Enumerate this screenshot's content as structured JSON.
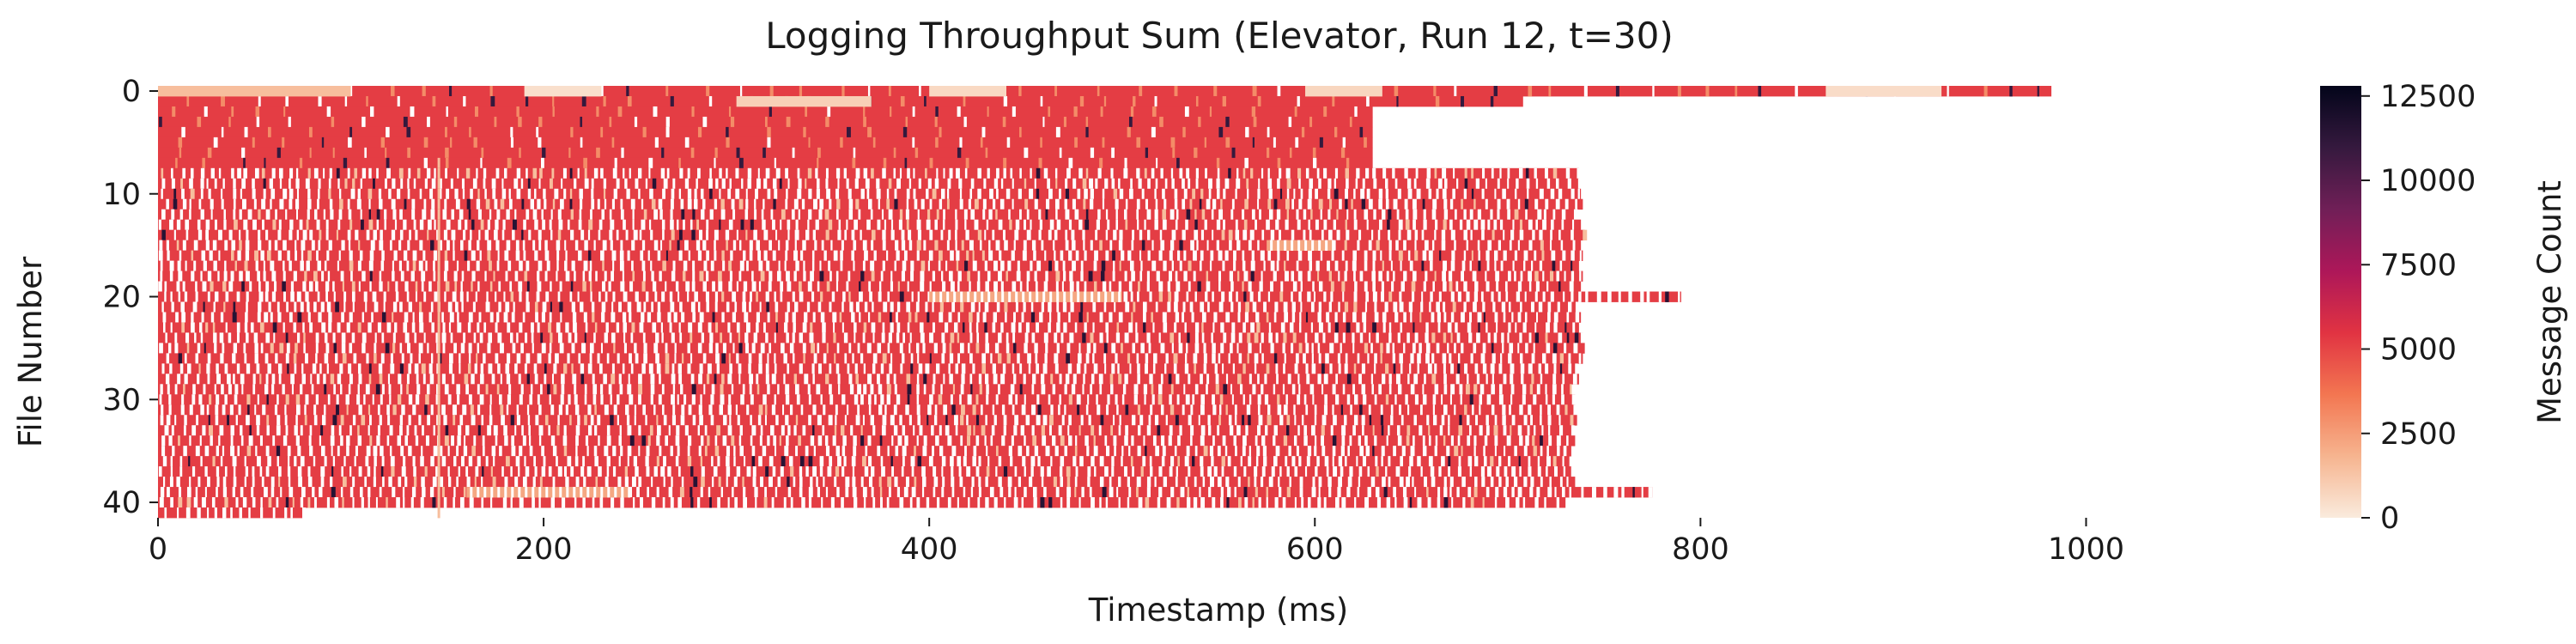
{
  "chart_data": {
    "type": "heatmap",
    "title": "Logging Throughput Sum (Elevator, Run 12, t=30)",
    "xlabel": "Timestamp (ms)",
    "ylabel": "File Number",
    "xlim": [
      0,
      1100
    ],
    "ylim": [
      0,
      42
    ],
    "y_inverted": true,
    "xticks": [
      0,
      200,
      400,
      600,
      800,
      1000
    ],
    "yticks": [
      0,
      10,
      20,
      30,
      40
    ],
    "colorbar": {
      "label": "Message Count",
      "min": 0,
      "max": 12800,
      "ticks": [
        0,
        2500,
        5000,
        7500,
        10000,
        12500
      ],
      "colors": [
        "#faebdd",
        "#f6b48f",
        "#f37651",
        "#e13342",
        "#ad1759",
        "#701f57",
        "#35193e",
        "#03051a"
      ]
    },
    "typical_value": 5200,
    "row_extents_ms": [
      [
        0,
        982
      ],
      [
        0,
        708
      ],
      [
        0,
        630
      ],
      [
        0,
        630
      ],
      [
        0,
        630
      ],
      [
        0,
        630
      ],
      [
        0,
        630
      ],
      [
        0,
        630
      ],
      [
        0,
        737
      ],
      [
        0,
        737
      ],
      [
        0,
        738
      ],
      [
        0,
        739
      ],
      [
        0,
        736
      ],
      [
        0,
        738
      ],
      [
        0,
        740
      ],
      [
        0,
        738
      ],
      [
        0,
        739
      ],
      [
        0,
        737
      ],
      [
        0,
        739
      ],
      [
        0,
        738
      ],
      [
        0,
        790
      ],
      [
        0,
        736
      ],
      [
        0,
        738
      ],
      [
        0,
        737
      ],
      [
        0,
        739
      ],
      [
        0,
        740
      ],
      [
        0,
        739
      ],
      [
        0,
        736
      ],
      [
        0,
        737
      ],
      [
        0,
        733
      ],
      [
        0,
        735
      ],
      [
        0,
        735
      ],
      [
        0,
        736
      ],
      [
        0,
        734
      ],
      [
        0,
        735
      ],
      [
        0,
        733
      ],
      [
        0,
        732
      ],
      [
        0,
        733
      ],
      [
        0,
        735
      ],
      [
        0,
        775
      ],
      [
        0,
        730
      ],
      [
        0,
        75
      ]
    ],
    "low_value_bands": [
      {
        "file": 0,
        "from_ms": 0,
        "to_ms": 100,
        "value": 1500
      },
      {
        "file": 0,
        "from_ms": 190,
        "to_ms": 230,
        "value": 400
      },
      {
        "file": 0,
        "from_ms": 400,
        "to_ms": 440,
        "value": 600
      },
      {
        "file": 0,
        "from_ms": 595,
        "to_ms": 635,
        "value": 700
      },
      {
        "file": 0,
        "from_ms": 865,
        "to_ms": 925,
        "value": 500
      },
      {
        "file": 1,
        "from_ms": 300,
        "to_ms": 370,
        "value": 900
      },
      {
        "file": 39,
        "from_ms": 160,
        "to_ms": 245,
        "value": 2200
      },
      {
        "file": 20,
        "from_ms": 400,
        "to_ms": 500,
        "value": 2200
      },
      {
        "file": 15,
        "from_ms": 575,
        "to_ms": 610,
        "value": 2200
      }
    ],
    "low_value_stripe_ms": 145
  }
}
